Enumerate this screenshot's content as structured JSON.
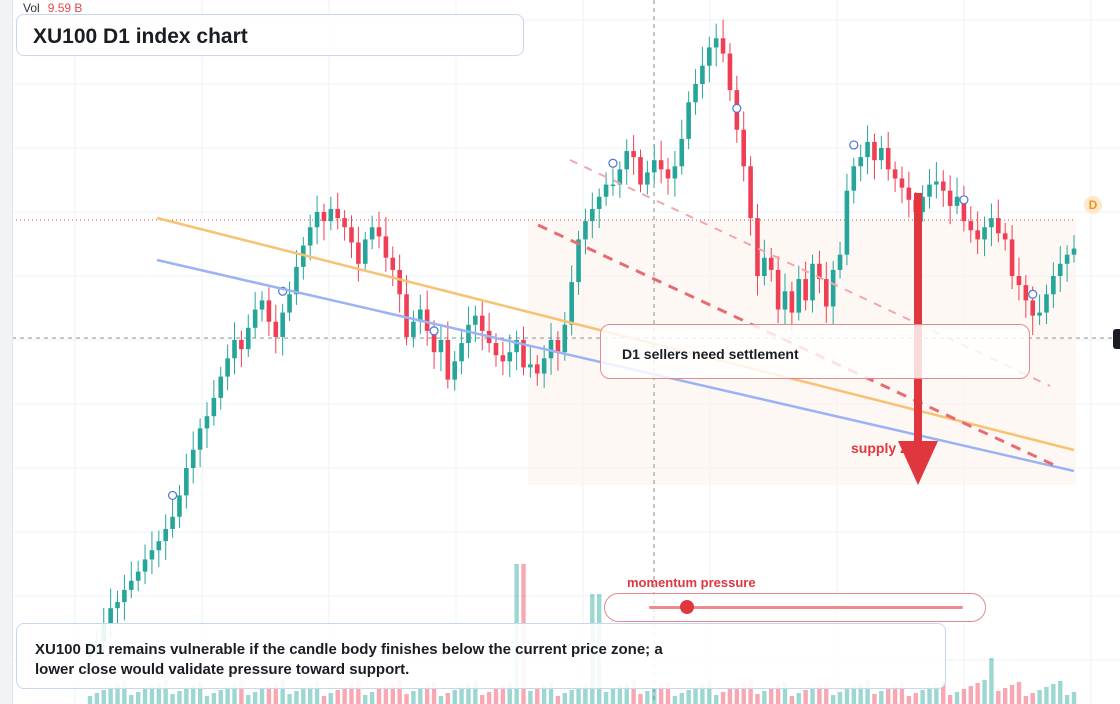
{
  "header": {
    "volume_label": "Vol",
    "volume_value": "9.59 B"
  },
  "title": "XU100 D1 index chart",
  "annotation_box": "D1 sellers need settlement",
  "supply_label": "supply zone",
  "momentum": {
    "label": "momentum pressure",
    "level": 0.12
  },
  "footer_text": "XU100 D1 remains vulnerable if the candle body finishes below the current price zone; a lower close would validate pressure toward support.",
  "badge_letter": "D",
  "colors": {
    "up": "#26a69a",
    "down": "#ef3f55",
    "accent": "#e0373f",
    "support_line": "#9bb3f5",
    "trend_line": "#f8c274"
  },
  "chart_data": {
    "type": "candlestick",
    "title": "XU100 D1 index chart",
    "count": 144,
    "price_range": [
      8000,
      10100
    ],
    "candles_close": [
      8040,
      8060,
      8120,
      8170,
      8190,
      8230,
      8260,
      8290,
      8330,
      8360,
      8390,
      8430,
      8470,
      8540,
      8630,
      8690,
      8760,
      8800,
      8860,
      8930,
      8990,
      9050,
      9020,
      9090,
      9150,
      9180,
      9110,
      9060,
      9140,
      9200,
      9290,
      9360,
      9420,
      9470,
      9440,
      9480,
      9450,
      9420,
      9370,
      9300,
      9380,
      9420,
      9390,
      9320,
      9280,
      9200,
      9060,
      9110,
      9150,
      9080,
      9010,
      9050,
      8920,
      8980,
      9040,
      9100,
      9130,
      9080,
      9040,
      9000,
      8980,
      9010,
      9050,
      8960,
      8970,
      8940,
      8990,
      9050,
      9010,
      9100,
      9240,
      9380,
      9440,
      9480,
      9520,
      9560,
      9560,
      9610,
      9670,
      9650,
      9560,
      9600,
      9640,
      9610,
      9580,
      9620,
      9710,
      9830,
      9890,
      9950,
      10010,
      10040,
      9990,
      9870,
      9740,
      9620,
      9450,
      9260,
      9320,
      9280,
      9150,
      9210,
      9140,
      9250,
      9180,
      9300,
      9250,
      9160,
      9280,
      9330,
      9540,
      9620,
      9650,
      9700,
      9640,
      9680,
      9610,
      9580,
      9550,
      9510,
      9470,
      9520,
      9560,
      9570,
      9540,
      9490,
      9520,
      9440,
      9410,
      9380,
      9420,
      9450,
      9400,
      9380,
      9260,
      9230,
      9180,
      9130,
      9140,
      9200,
      9260,
      9300,
      9330,
      9350
    ]
  }
}
